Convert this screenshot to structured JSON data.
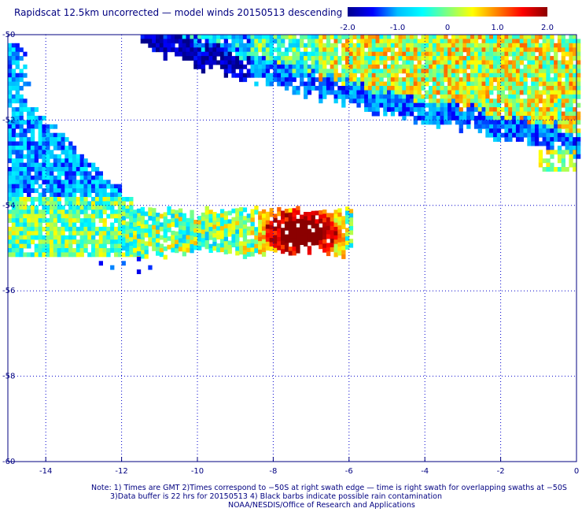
{
  "header": {
    "title": "Rapidscat 12.5km uncorrected — model winds 20150513 descending"
  },
  "colorbar": {
    "min": -2.0,
    "max": 2.0,
    "ticks": [
      "-2.0",
      "-1.0",
      "0",
      "1.0",
      "2.0"
    ],
    "tick_values": [
      -2.0,
      -1.0,
      0,
      1.0,
      2.0
    ],
    "colors": [
      "#00008b",
      "#0000ff",
      "#00bfff",
      "#00ffff",
      "#7fff7f",
      "#ffff00",
      "#ff7f00",
      "#ff0000",
      "#8b0000"
    ]
  },
  "map": {
    "x_range": [
      -15,
      0
    ],
    "y_range": [
      -60,
      -50
    ],
    "x_ticks": [
      "-14",
      "-12",
      "-10",
      "-8",
      "-6",
      "-4",
      "-2",
      "0"
    ],
    "x_tick_values": [
      -14,
      -12,
      -10,
      -8,
      -6,
      -4,
      -2,
      0
    ],
    "y_ticks": [
      "-50",
      "-52",
      "-54",
      "-56",
      "-58",
      "-60"
    ],
    "y_tick_values": [
      -50,
      -52,
      -54,
      -56,
      -58,
      -60
    ],
    "grid": true,
    "grid_color": "#0000cc"
  },
  "chart_data": {
    "type": "heatmap",
    "title": "Rapidscat 12.5km uncorrected — model winds 20150513 descending",
    "xlabel": "",
    "ylabel": "",
    "xlim": [
      -15,
      0
    ],
    "ylim": [
      -60,
      -50
    ],
    "value_range": [
      -2.0,
      2.0
    ],
    "grid": true,
    "swaths": [
      {
        "region": "upper-right",
        "lon": [
          -11.5,
          0
        ],
        "lat": [
          -52.8,
          -50
        ],
        "mean_difference": 0.2
      },
      {
        "region": "left",
        "lon": [
          -15,
          -11.5
        ],
        "lat": [
          -55.2,
          -50.2
        ],
        "mean_difference": -1.2
      },
      {
        "region": "lower-band",
        "lon": [
          -12.0,
          -6.0
        ],
        "lat": [
          -55.2,
          -54.0
        ],
        "mean_difference": -0.2
      },
      {
        "region": "lower-band-hotspot",
        "lon": [
          -8.0,
          -6.0
        ],
        "lat": [
          -55.0,
          -54.2
        ],
        "mean_difference": 2.0
      }
    ]
  },
  "notes": {
    "line1": "Note: 1) Times are GMT 2)Times correspond to −50S at right swath edge — time is right swath for overlapping swaths at −50S",
    "line2": "3)Data buffer is 22 hrs for 20150513 4) Black barbs indicate possible rain contamination",
    "line3": "NOAA/NESDIS/Office of Research and Applications"
  }
}
